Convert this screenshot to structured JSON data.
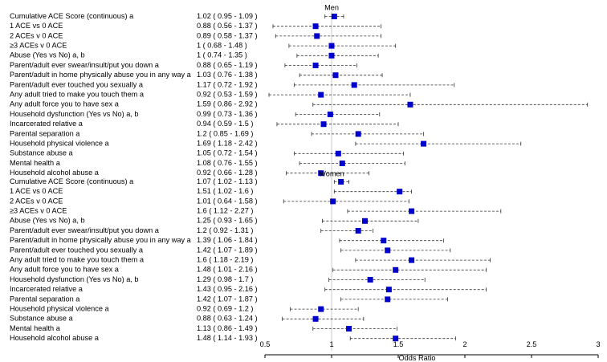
{
  "chart_data": {
    "type": "scatter",
    "xlabel": "Odds Ratio",
    "xlim": [
      0.5,
      3
    ],
    "x_ticks": [
      "0.5",
      "1",
      "1.5",
      "2",
      "2.5",
      "3"
    ],
    "x_tick_values": [
      0.5,
      1,
      1.5,
      2,
      2.5,
      3
    ],
    "reference_line": 1,
    "marker_color": "#0000cc",
    "groups": [
      {
        "name": "Men",
        "rows": [
          {
            "label": "Cumulative ACE Score (continuous) a",
            "ci_text": "1.02 ( 0.95 - 1.09 )",
            "or": 1.02,
            "lo": 0.95,
            "hi": 1.09
          },
          {
            "label": "1 ACE vs 0 ACE",
            "ci_text": "0.88 ( 0.56 - 1.37 )",
            "or": 0.88,
            "lo": 0.56,
            "hi": 1.37
          },
          {
            "label": "2 ACEs v 0 ACE",
            "ci_text": "0.89 ( 0.58 - 1.37 )",
            "or": 0.89,
            "lo": 0.58,
            "hi": 1.37
          },
          {
            "label": "≥3 ACEs v 0 ACE",
            "ci_text": "1 ( 0.68 - 1.48 )",
            "or": 1.0,
            "lo": 0.68,
            "hi": 1.48
          },
          {
            "label": "Abuse (Yes vs No) a, b",
            "ci_text": "1 ( 0.74 - 1.35 )",
            "or": 1.0,
            "lo": 0.74,
            "hi": 1.35
          },
          {
            "label": "Parent/adult ever swear/insult/put you down a",
            "ci_text": "0.88 ( 0.65 - 1.19 )",
            "or": 0.88,
            "lo": 0.65,
            "hi": 1.19
          },
          {
            "label": "Parent/adult in home physically abuse you in any way a",
            "ci_text": "1.03 ( 0.76 - 1.38 )",
            "or": 1.03,
            "lo": 0.76,
            "hi": 1.38
          },
          {
            "label": "Parent/adult ever touched you sexually a",
            "ci_text": "1.17 ( 0.72 - 1.92 )",
            "or": 1.17,
            "lo": 0.72,
            "hi": 1.92
          },
          {
            "label": "Any adult tried to make you touch them a",
            "ci_text": "0.92 ( 0.53 - 1.59 )",
            "or": 0.92,
            "lo": 0.53,
            "hi": 1.59
          },
          {
            "label": "Any adult force you to have sex a",
            "ci_text": "1.59 ( 0.86 - 2.92 )",
            "or": 1.59,
            "lo": 0.86,
            "hi": 2.92
          },
          {
            "label": "Household dysfunction (Yes vs No) a, b",
            "ci_text": "0.99 ( 0.73 - 1.36 )",
            "or": 0.99,
            "lo": 0.73,
            "hi": 1.36
          },
          {
            "label": "Incarcerated relative a",
            "ci_text": "0.94 ( 0.59 - 1.5 )",
            "or": 0.94,
            "lo": 0.59,
            "hi": 1.5
          },
          {
            "label": "Parental separation a",
            "ci_text": "1.2 ( 0.85 - 1.69 )",
            "or": 1.2,
            "lo": 0.85,
            "hi": 1.69
          },
          {
            "label": "Household physical violence a",
            "ci_text": "1.69 ( 1.18 - 2.42 )",
            "or": 1.69,
            "lo": 1.18,
            "hi": 2.42
          },
          {
            "label": "Substance abuse a",
            "ci_text": "1.05 ( 0.72 - 1.54 )",
            "or": 1.05,
            "lo": 0.72,
            "hi": 1.54
          },
          {
            "label": "Mental health a",
            "ci_text": "1.08 ( 0.76 - 1.55 )",
            "or": 1.08,
            "lo": 0.76,
            "hi": 1.55
          },
          {
            "label": "Household alcohol abuse a",
            "ci_text": "0.92 ( 0.66 - 1.28 )",
            "or": 0.92,
            "lo": 0.66,
            "hi": 1.28
          }
        ]
      },
      {
        "name": "Women",
        "rows": [
          {
            "label": "Cumulative ACE Score (continuous) a",
            "ci_text": "1.07 ( 1.02 - 1.13 )",
            "or": 1.07,
            "lo": 1.02,
            "hi": 1.13
          },
          {
            "label": "1 ACE vs 0 ACE",
            "ci_text": "1.51 ( 1.02 - 1.6 )",
            "or": 1.51,
            "lo": 1.02,
            "hi": 1.6
          },
          {
            "label": "2 ACEs v 0 ACE",
            "ci_text": "1.01 ( 0.64 - 1.58 )",
            "or": 1.01,
            "lo": 0.64,
            "hi": 1.58
          },
          {
            "label": "≥3 ACEs v 0 ACE",
            "ci_text": "1.6 ( 1.12 - 2.27 )",
            "or": 1.6,
            "lo": 1.12,
            "hi": 2.27
          },
          {
            "label": "Abuse (Yes vs No) a, b",
            "ci_text": "1.25 ( 0.93 - 1.65 )",
            "or": 1.25,
            "lo": 0.93,
            "hi": 1.65
          },
          {
            "label": "Parent/adult ever swear/insult/put you down a",
            "ci_text": "1.2 ( 0.92 - 1.31 )",
            "or": 1.2,
            "lo": 0.92,
            "hi": 1.31
          },
          {
            "label": "Parent/adult in home physically abuse you in any way a",
            "ci_text": "1.39 ( 1.06 - 1.84 )",
            "or": 1.39,
            "lo": 1.06,
            "hi": 1.84
          },
          {
            "label": "Parent/adult ever touched you sexually a",
            "ci_text": "1.42 ( 1.07 - 1.89 )",
            "or": 1.42,
            "lo": 1.07,
            "hi": 1.89
          },
          {
            "label": "Any adult tried to make you touch them a",
            "ci_text": "1.6 ( 1.18 - 2.19 )",
            "or": 1.6,
            "lo": 1.18,
            "hi": 2.19
          },
          {
            "label": "Any adult force you to have sex a",
            "ci_text": "1.48 ( 1.01 - 2.16 )",
            "or": 1.48,
            "lo": 1.01,
            "hi": 2.16
          },
          {
            "label": "Household dysfunction (Yes vs No) a, b",
            "ci_text": "1.29 ( 0.98 - 1.7 )",
            "or": 1.29,
            "lo": 0.98,
            "hi": 1.7
          },
          {
            "label": "Incarcerated relative a",
            "ci_text": "1.43 ( 0.95 - 2.16 )",
            "or": 1.43,
            "lo": 0.95,
            "hi": 2.16
          },
          {
            "label": "Parental separation a",
            "ci_text": "1.42 ( 1.07 - 1.87 )",
            "or": 1.42,
            "lo": 1.07,
            "hi": 1.87
          },
          {
            "label": "Household physical violence a",
            "ci_text": "0.92 ( 0.69 - 1.2 )",
            "or": 0.92,
            "lo": 0.69,
            "hi": 1.2
          },
          {
            "label": "Substance abuse a",
            "ci_text": "0.88 ( 0.63 - 1.24 )",
            "or": 0.88,
            "lo": 0.63,
            "hi": 1.24
          },
          {
            "label": "Mental health a",
            "ci_text": "1.13 ( 0.86 - 1.49 )",
            "or": 1.13,
            "lo": 0.86,
            "hi": 1.49
          },
          {
            "label": "Household alcohol abuse a",
            "ci_text": "1.48 ( 1.14 - 1.93 )",
            "or": 1.48,
            "lo": 1.14,
            "hi": 1.93
          }
        ]
      }
    ]
  }
}
